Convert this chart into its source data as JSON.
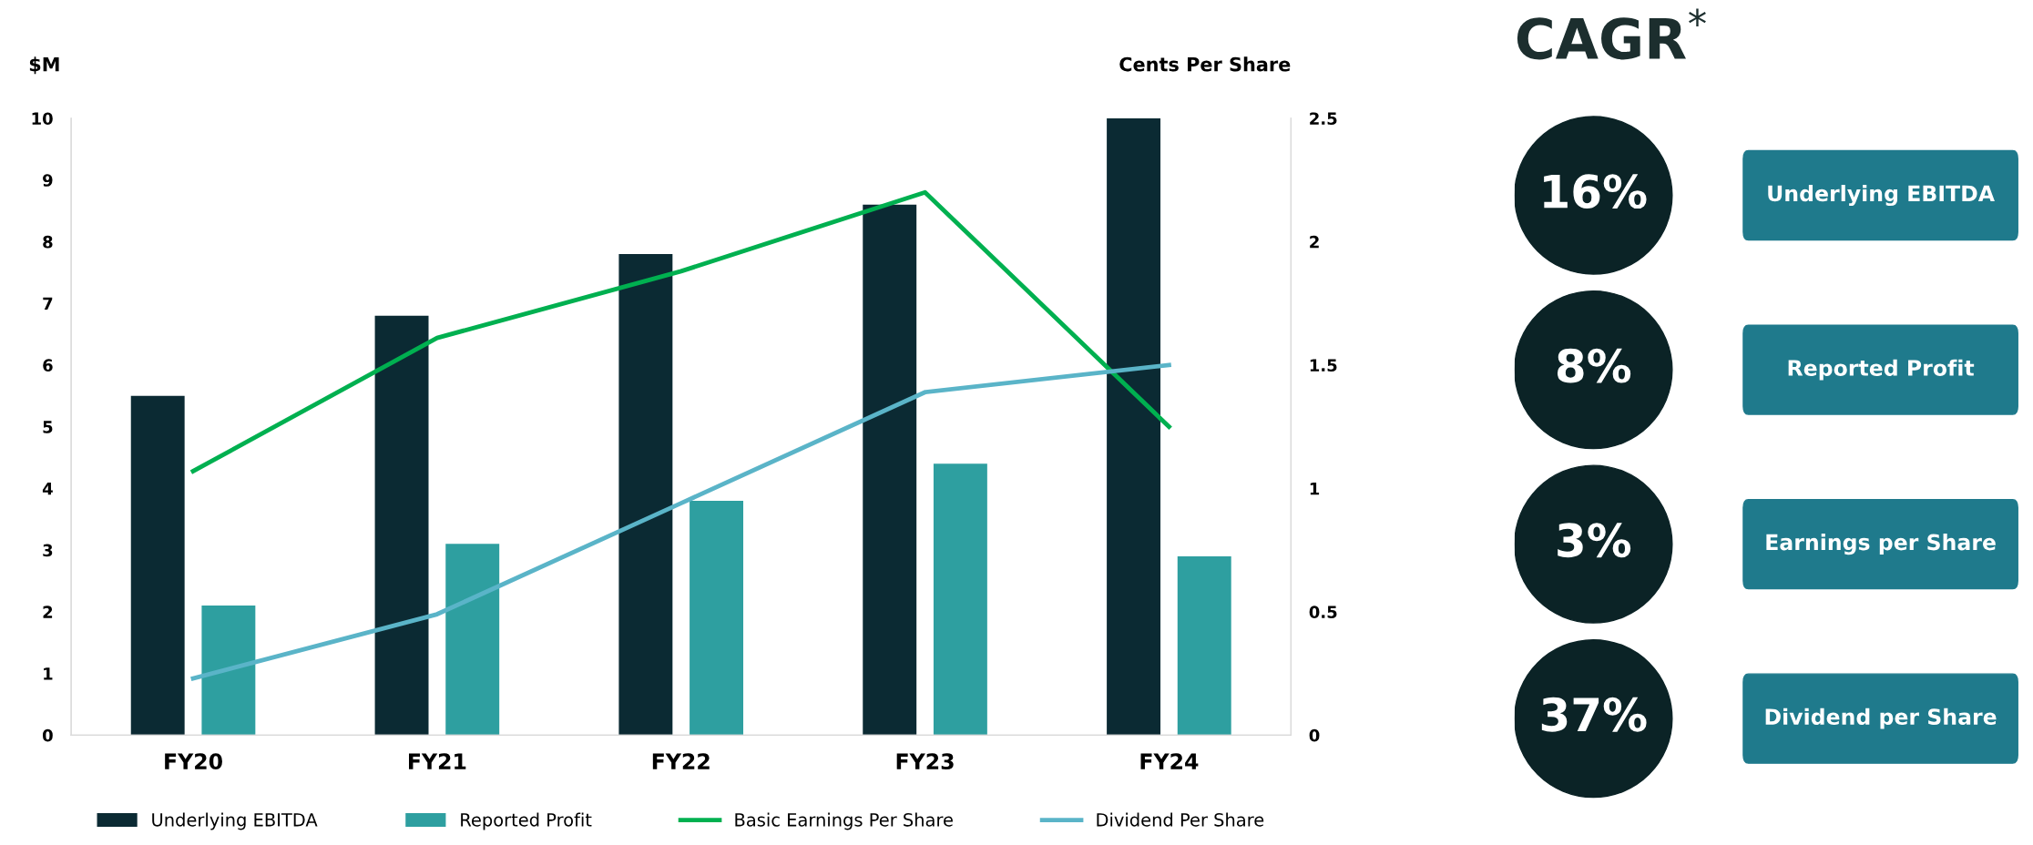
{
  "chart_data": [
    {
      "type": "bar",
      "ylabel": "$M",
      "y2label": "Cents Per Share",
      "categories": [
        "FY20",
        "FY21",
        "FY22",
        "FY23",
        "FY24"
      ],
      "series": [
        {
          "name": "Underlying EBITDA",
          "type": "bar",
          "color": "#0b2a33",
          "values": [
            5.5,
            6.8,
            7.8,
            8.6,
            10.0
          ]
        },
        {
          "name": "Reported Profit",
          "type": "bar",
          "color": "#2e9fa0",
          "values": [
            2.1,
            3.1,
            3.8,
            4.4,
            2.9
          ]
        },
        {
          "name": "Basic Earnings Per Share",
          "type": "line",
          "axis": "y2",
          "color": "#00b050",
          "values": [
            1.07,
            1.61,
            1.88,
            2.2,
            1.25
          ]
        },
        {
          "name": "Dividend Per Share",
          "type": "line",
          "axis": "y2",
          "color": "#5ab4c8",
          "values": [
            0.23,
            0.49,
            0.94,
            1.39,
            1.5
          ]
        }
      ],
      "ylim": [
        0,
        10
      ],
      "yticks": [
        0,
        1,
        2,
        3,
        4,
        5,
        6,
        7,
        8,
        9,
        10
      ],
      "y2lim": [
        0,
        2.5
      ],
      "y2ticks": [
        0,
        0.5,
        1,
        1.5,
        2,
        2.5
      ],
      "grid": false,
      "legend": "bottom",
      "marker": "none",
      "line_style": "solid"
    },
    {
      "type": "other",
      "title": "CAGR$^{*}$",
      "categories": [
        "Underlying EBITDA",
        "Reported Profit",
        "Earnings per Share",
        "Dividend per Share"
      ],
      "value_labels": [
        "16%",
        "8%",
        "3%",
        "37%"
      ],
      "colors": [
        "#1f7a8c",
        "#1f7a8c",
        "#1f7a8c",
        "#1f7a8c"
      ]
    }
  ]
}
